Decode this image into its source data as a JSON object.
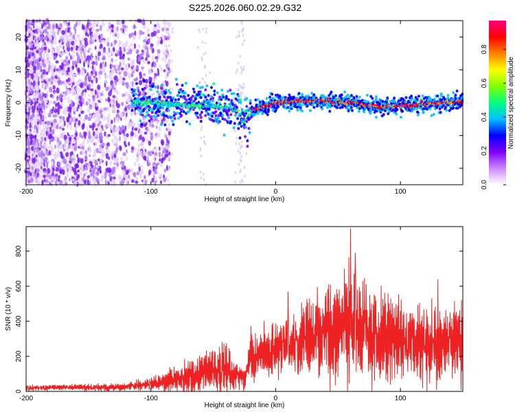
{
  "figure": {
    "title": "S225.2026.060.02.29.G32"
  },
  "chart_data": [
    {
      "type": "heatmap",
      "xlabel": "Height of straight line (km)",
      "ylabel": "Frequency (Hz)",
      "xlim": [
        -200,
        150
      ],
      "ylim": [
        -25,
        25
      ],
      "xticks": [
        -200,
        -100,
        0,
        100
      ],
      "yticks": [
        -20,
        -10,
        0,
        10,
        20
      ],
      "colorbar": {
        "label": "Normalized spectral amplitude",
        "range": [
          0.0,
          0.97
        ],
        "ticks": [
          0.0,
          0.2,
          0.4,
          0.6,
          0.8
        ],
        "colors": [
          "#ffffff",
          "#cc88ff",
          "#8000ff",
          "#0000ff",
          "#00c0ff",
          "#00ff80",
          "#80ff00",
          "#ffff00",
          "#ff8000",
          "#ff0000",
          "#ff0080"
        ]
      },
      "ridge": [
        {
          "x": -110,
          "y": 0.0
        },
        {
          "x": -80,
          "y": -0.5
        },
        {
          "x": -50,
          "y": -1.0
        },
        {
          "x": -30,
          "y": -2.0
        },
        {
          "x": -25,
          "y": -6.0
        },
        {
          "x": -20,
          "y": -2.5
        },
        {
          "x": -10,
          "y": -1.5
        },
        {
          "x": 0,
          "y": 0.0
        },
        {
          "x": 20,
          "y": 0.5
        },
        {
          "x": 40,
          "y": 0.5
        },
        {
          "x": 60,
          "y": 0.0
        },
        {
          "x": 80,
          "y": -1.0
        },
        {
          "x": 100,
          "y": -1.0
        },
        {
          "x": 120,
          "y": -0.5
        },
        {
          "x": 150,
          "y": 0.5
        }
      ]
    },
    {
      "type": "line",
      "xlabel": "Height of straight line (km)",
      "ylabel": "SNR (10 * v/v)",
      "xlim": [
        -200,
        150
      ],
      "ylim": [
        0,
        940
      ],
      "xticks": [
        -200,
        -100,
        0,
        100
      ],
      "yticks": [
        0,
        200,
        400,
        600,
        800
      ],
      "series": [
        {
          "color": "#ee2222",
          "envelope": [
            {
              "x": -200,
              "mean": 20,
              "amp": 15
            },
            {
              "x": -120,
              "mean": 25,
              "amp": 20
            },
            {
              "x": -100,
              "mean": 45,
              "amp": 35
            },
            {
              "x": -80,
              "mean": 70,
              "amp": 70
            },
            {
              "x": -60,
              "mean": 110,
              "amp": 100
            },
            {
              "x": -40,
              "mean": 140,
              "amp": 130
            },
            {
              "x": -25,
              "mean": 70,
              "amp": 60
            },
            {
              "x": -20,
              "mean": 200,
              "amp": 120
            },
            {
              "x": 0,
              "mean": 240,
              "amp": 140
            },
            {
              "x": 20,
              "mean": 280,
              "amp": 170
            },
            {
              "x": 40,
              "mean": 340,
              "amp": 230
            },
            {
              "x": 60,
              "mean": 380,
              "amp": 270
            },
            {
              "x": 80,
              "mean": 330,
              "amp": 230
            },
            {
              "x": 100,
              "mean": 300,
              "amp": 210
            },
            {
              "x": 130,
              "mean": 270,
              "amp": 200
            },
            {
              "x": 150,
              "mean": 270,
              "amp": 200
            }
          ],
          "peaks": [
            {
              "x": 60,
              "y": 930
            },
            {
              "x": 64,
              "y": 790
            },
            {
              "x": 55,
              "y": 700
            },
            {
              "x": 130,
              "y": 640
            },
            {
              "x": 10,
              "y": 570
            },
            {
              "x": 90,
              "y": 560
            }
          ]
        }
      ]
    }
  ]
}
